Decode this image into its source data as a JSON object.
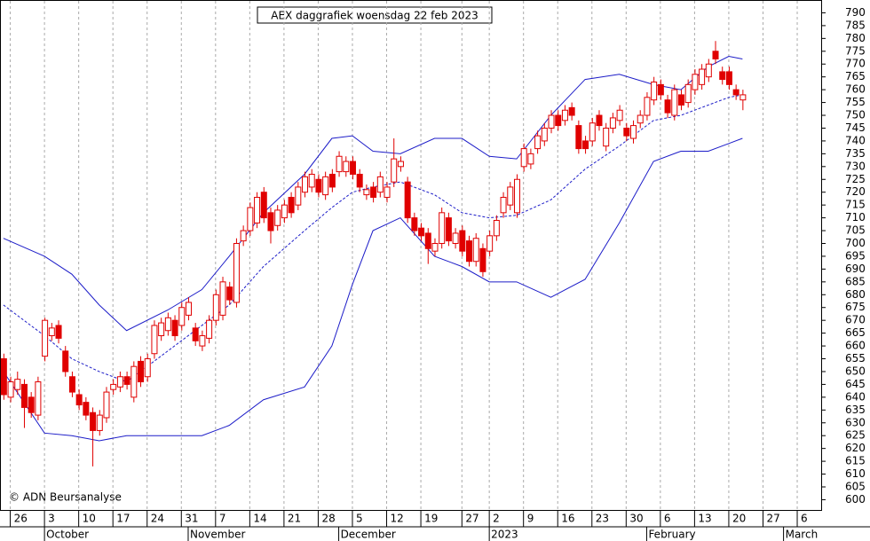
{
  "chart_data": {
    "type": "candlestick",
    "title": "AEX daggrafiek woensdag 22 feb 2023",
    "annotation": "© ADN Beursanalyse",
    "xlim": [
      -0.5,
      119.5
    ],
    "ylim": [
      596,
      795
    ],
    "yticks": [
      600,
      605,
      610,
      615,
      620,
      625,
      630,
      635,
      640,
      645,
      650,
      655,
      660,
      665,
      670,
      675,
      680,
      685,
      690,
      695,
      700,
      705,
      710,
      715,
      720,
      725,
      730,
      735,
      740,
      745,
      750,
      755,
      760,
      765,
      770,
      775,
      780,
      785,
      790
    ],
    "xticks": [
      {
        "value": 1,
        "label": "26"
      },
      {
        "value": 6,
        "label": "3"
      },
      {
        "value": 11,
        "label": "10"
      },
      {
        "value": 16,
        "label": "17"
      },
      {
        "value": 21,
        "label": "24"
      },
      {
        "value": 26,
        "label": "31"
      },
      {
        "value": 31,
        "label": "7"
      },
      {
        "value": 36,
        "label": "14"
      },
      {
        "value": 41,
        "label": "21"
      },
      {
        "value": 46,
        "label": "28"
      },
      {
        "value": 51,
        "label": "5"
      },
      {
        "value": 56,
        "label": "12"
      },
      {
        "value": 61,
        "label": "19"
      },
      {
        "value": 67,
        "label": "27"
      },
      {
        "value": 71,
        "label": "2"
      },
      {
        "value": 76,
        "label": "9"
      },
      {
        "value": 81,
        "label": "16"
      },
      {
        "value": 86,
        "label": "23"
      },
      {
        "value": 91,
        "label": "30"
      },
      {
        "value": 96,
        "label": "6"
      },
      {
        "value": 101,
        "label": "13"
      },
      {
        "value": 106,
        "label": "20"
      },
      {
        "value": 111,
        "label": "27"
      },
      {
        "value": 116,
        "label": "6"
      }
    ],
    "month_ticks": [
      {
        "value": 6,
        "label": "October"
      },
      {
        "value": 27,
        "label": "November"
      },
      {
        "value": 49,
        "label": "December"
      },
      {
        "value": 71,
        "label": "2023"
      },
      {
        "value": 94,
        "label": "February"
      },
      {
        "value": 114,
        "label": "March"
      }
    ],
    "grid": true,
    "candle_color": "#e00000",
    "band_color": "#1c1cc8",
    "candles": {
      "x": [
        0,
        1,
        2,
        3,
        4,
        5,
        6,
        7,
        8,
        9,
        10,
        11,
        12,
        13,
        14,
        15,
        16,
        17,
        18,
        19,
        20,
        21,
        22,
        23,
        24,
        25,
        26,
        27,
        28,
        29,
        30,
        31,
        32,
        33,
        34,
        35,
        36,
        37,
        38,
        39,
        40,
        41,
        42,
        43,
        44,
        45,
        46,
        47,
        48,
        49,
        50,
        51,
        52,
        53,
        54,
        55,
        56,
        57,
        58,
        59,
        60,
        61,
        62,
        63,
        64,
        65,
        66,
        67,
        68,
        69,
        70,
        71,
        72,
        73,
        74,
        75,
        76,
        77,
        78,
        79,
        80,
        81,
        82,
        83,
        84,
        85,
        86,
        87,
        88,
        89,
        90,
        91,
        92,
        93,
        94,
        95,
        96,
        97,
        98,
        99,
        100,
        101,
        102,
        103,
        104,
        105,
        106,
        107,
        108
      ],
      "open": [
        655,
        640,
        643,
        645,
        640,
        633,
        656,
        664,
        668,
        658,
        648,
        641,
        638,
        634,
        627,
        632,
        643,
        644,
        648,
        640,
        654,
        648,
        657,
        664,
        666,
        670,
        668,
        672,
        667,
        660,
        663,
        670,
        672,
        683,
        677,
        701,
        705,
        708,
        720,
        712,
        707,
        710,
        718,
        715,
        720,
        722,
        725,
        719,
        727,
        728,
        728,
        732,
        727,
        719,
        722,
        720,
        718,
        724,
        730,
        724,
        710,
        706,
        704,
        697,
        700,
        710,
        700,
        705,
        701,
        693,
        698,
        697,
        703,
        712,
        715,
        712,
        730,
        731,
        737,
        740,
        745,
        750,
        748,
        753,
        746,
        740,
        740,
        750,
        738,
        745,
        748,
        745,
        741,
        747,
        750,
        756,
        762,
        756,
        750,
        758,
        755,
        760,
        762,
        765,
        775,
        767,
        767,
        760,
        756
      ],
      "high": [
        657,
        648,
        650,
        647,
        642,
        648,
        671,
        669,
        670,
        660,
        650,
        643,
        640,
        636,
        635,
        644,
        647,
        650,
        650,
        654,
        656,
        657,
        670,
        671,
        673,
        672,
        677,
        679,
        669,
        666,
        672,
        682,
        687,
        685,
        702,
        707,
        716,
        720,
        722,
        714,
        715,
        717,
        720,
        724,
        728,
        729,
        727,
        728,
        729,
        736,
        734,
        734,
        729,
        723,
        724,
        728,
        724,
        741,
        734,
        726,
        712,
        708,
        706,
        702,
        714,
        712,
        706,
        707,
        703,
        704,
        700,
        705,
        711,
        720,
        724,
        727,
        739,
        737,
        744,
        747,
        752,
        752,
        754,
        755,
        748,
        742,
        749,
        752,
        747,
        751,
        754,
        747,
        748,
        752,
        759,
        765,
        764,
        758,
        762,
        760,
        764,
        768,
        770,
        772,
        779,
        769,
        769,
        762,
        760
      ],
      "low": [
        639,
        638,
        641,
        628,
        632,
        631,
        654,
        662,
        661,
        648,
        640,
        635,
        631,
        613,
        625,
        630,
        641,
        642,
        643,
        638,
        644,
        646,
        655,
        662,
        664,
        662,
        666,
        670,
        660,
        658,
        661,
        668,
        670,
        676,
        675,
        699,
        703,
        706,
        708,
        700,
        705,
        708,
        710,
        713,
        718,
        720,
        718,
        717,
        720,
        726,
        726,
        725,
        720,
        717,
        716,
        718,
        716,
        722,
        728,
        708,
        703,
        701,
        692,
        695,
        698,
        699,
        698,
        695,
        691,
        691,
        687,
        695,
        701,
        710,
        713,
        710,
        728,
        729,
        735,
        738,
        743,
        744,
        746,
        748,
        735,
        735,
        738,
        744,
        736,
        743,
        746,
        740,
        739,
        745,
        748,
        754,
        756,
        749,
        748,
        752,
        753,
        758,
        760,
        763,
        770,
        762,
        760,
        756,
        752
      ],
      "close": [
        641,
        646,
        647,
        636,
        634,
        646,
        670,
        667,
        663,
        650,
        642,
        637,
        633,
        627,
        633,
        642,
        645,
        648,
        645,
        652,
        646,
        655,
        668,
        669,
        671,
        664,
        675,
        677,
        662,
        664,
        670,
        680,
        685,
        678,
        700,
        705,
        714,
        718,
        710,
        705,
        713,
        715,
        712,
        722,
        726,
        727,
        720,
        726,
        722,
        734,
        732,
        727,
        722,
        721,
        718,
        726,
        722,
        733,
        732,
        710,
        705,
        703,
        698,
        700,
        712,
        701,
        704,
        697,
        693,
        702,
        689,
        703,
        709,
        718,
        722,
        725,
        737,
        735,
        742,
        745,
        750,
        746,
        752,
        750,
        737,
        737,
        747,
        746,
        745,
        749,
        752,
        742,
        746,
        750,
        757,
        763,
        758,
        751,
        760,
        754,
        762,
        766,
        768,
        770,
        772,
        764,
        762,
        758,
        758
      ]
    },
    "bands": {
      "x": [
        0,
        6,
        10,
        14,
        18,
        24,
        29,
        33,
        38,
        44,
        48,
        51,
        54,
        58,
        63,
        67,
        71,
        75,
        80,
        85,
        90,
        95,
        99,
        103,
        106,
        108
      ],
      "upper": [
        702,
        695,
        688,
        676,
        666,
        674,
        682,
        695,
        712,
        727,
        741,
        742,
        736,
        735,
        741,
        741,
        734,
        733,
        750,
        764,
        766,
        762,
        760,
        769,
        773,
        772
      ],
      "middle": [
        676,
        664,
        655,
        650,
        646,
        658,
        668,
        676,
        691,
        705,
        714,
        720,
        722,
        724,
        719,
        712,
        710,
        711,
        717,
        729,
        738,
        748,
        750,
        754,
        757,
        758
      ],
      "lower": [
        650,
        626,
        625,
        623,
        625,
        625,
        625,
        629,
        639,
        644,
        660,
        684,
        705,
        710,
        695,
        691,
        685,
        685,
        679,
        686,
        708,
        732,
        736,
        736,
        739,
        741
      ]
    }
  }
}
